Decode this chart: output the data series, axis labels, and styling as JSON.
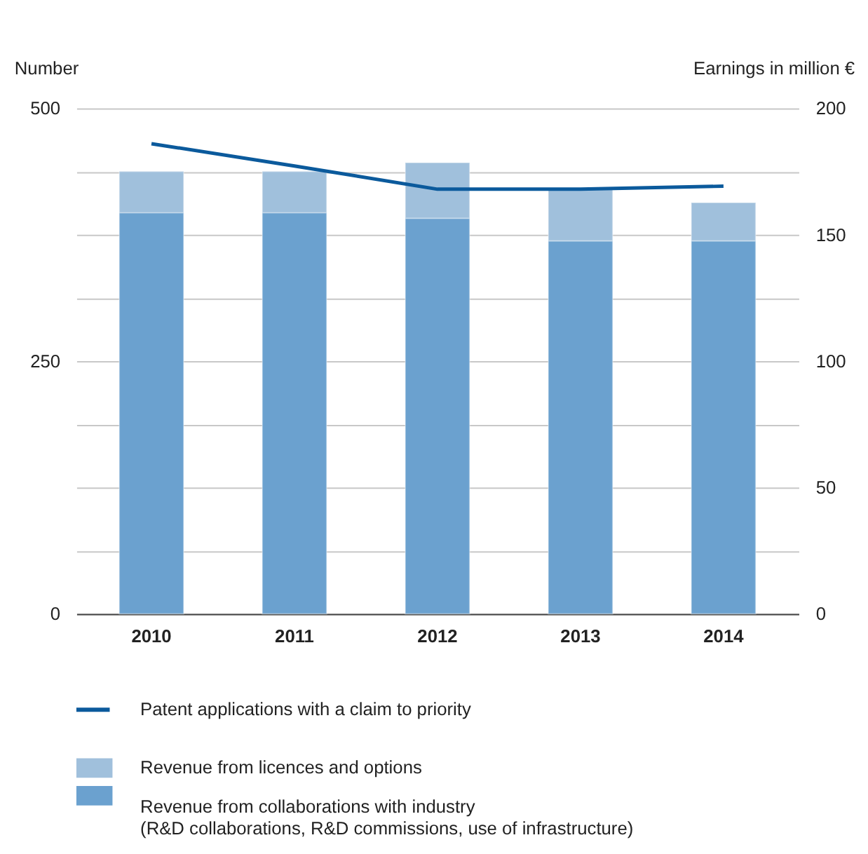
{
  "chart_data": {
    "type": "bar",
    "stacked": true,
    "categories": [
      "2010",
      "2011",
      "2012",
      "2013",
      "2014"
    ],
    "ylabel": "Number",
    "y2label": "Earnings in million €",
    "ylim": [
      0,
      500
    ],
    "yticks": [
      0,
      250,
      500
    ],
    "y2lim": [
      0,
      200
    ],
    "y2ticks": [
      0,
      {
        "value": 25,
        "label": null
      },
      50,
      {
        "value": 75,
        "label": null
      },
      100,
      {
        "value": 125,
        "label": null
      },
      150,
      {
        "value": 175,
        "label": null
      },
      200
    ],
    "grid": "y2",
    "legend": "bottom",
    "series": [
      {
        "name": "Revenue from collaborations with industry\n(R&D collaborations, R&D commissions, use of infrastructure)",
        "color": "#6ba1cf",
        "axis": "y2",
        "values": [
          158.7,
          158.7,
          156.5,
          147.6,
          147.6
        ]
      },
      {
        "name": "Revenue from licences and options",
        "color": "#a0c0dc",
        "axis": "y2",
        "values": [
          16.3,
          16.3,
          22.0,
          20.6,
          15.1
        ]
      },
      {
        "name": "Patent applications with a claim to priority",
        "type": "line",
        "color": "#0b5a9c",
        "axis": "y",
        "values": [
          465,
          443,
          420,
          420,
          423
        ]
      }
    ]
  }
}
